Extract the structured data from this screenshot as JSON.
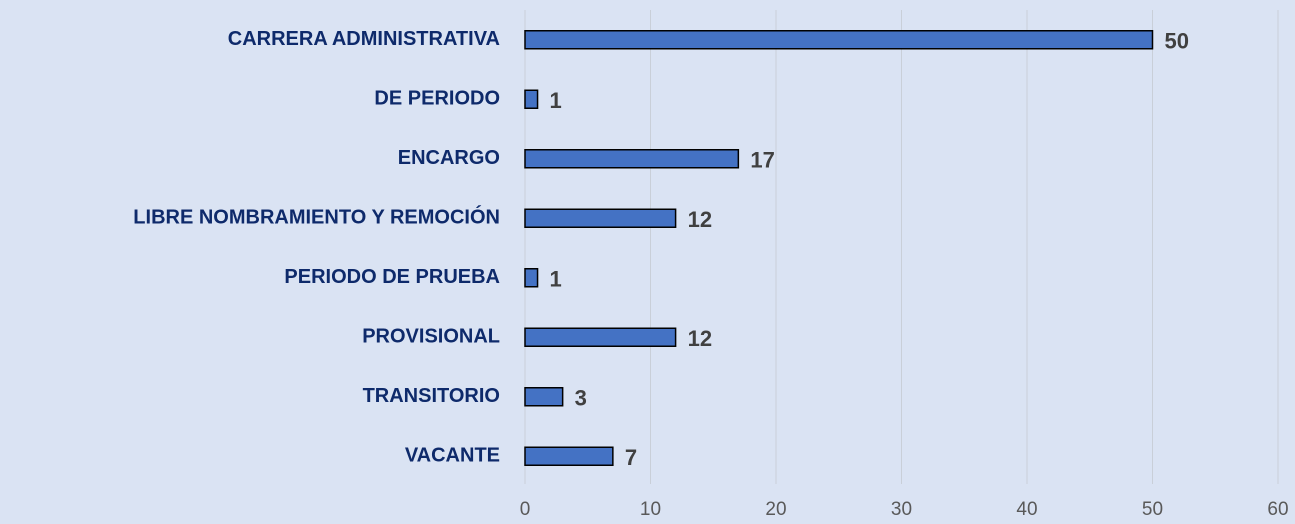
{
  "chart_data": {
    "type": "bar",
    "orientation": "horizontal",
    "categories": [
      "CARRERA ADMINISTRATIVA",
      "DE PERIODO",
      "ENCARGO",
      "LIBRE NOMBRAMIENTO Y REMOCIÓN",
      "PERIODO DE PRUEBA",
      "PROVISIONAL",
      "TRANSITORIO",
      "VACANTE"
    ],
    "values": [
      50,
      1,
      17,
      12,
      1,
      12,
      3,
      7
    ],
    "color": "#4472c4",
    "xlim": [
      0,
      60
    ],
    "xticks": [
      0,
      10,
      20,
      30,
      40,
      50,
      60
    ],
    "grid": true
  }
}
